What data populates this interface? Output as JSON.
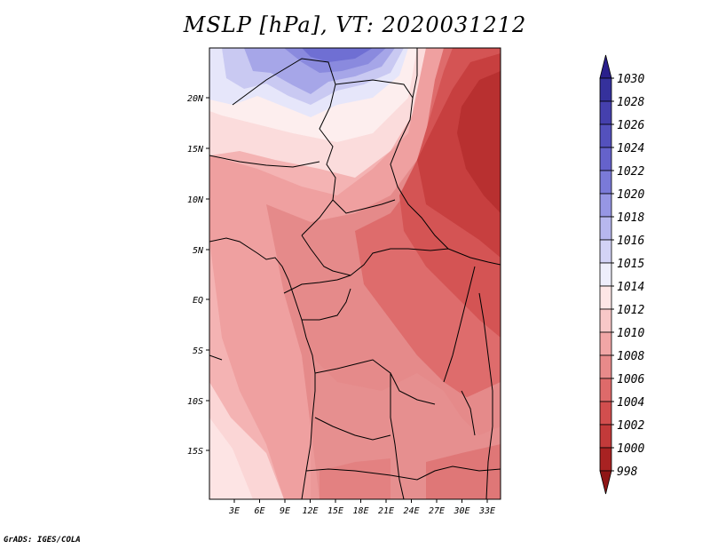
{
  "title": "MSLP [hPa], VT: 2020031212",
  "credit": "GrADS: IGES/COLA",
  "map": {
    "lat_labels": [
      "20N",
      "15N",
      "10N",
      "5N",
      "EQ",
      "5S",
      "10S",
      "15S"
    ],
    "lon_labels": [
      "3E",
      "6E",
      "9E",
      "12E",
      "15E",
      "18E",
      "21E",
      "24E",
      "27E",
      "30E",
      "33E"
    ]
  },
  "colorbar": {
    "levels": [
      "1030",
      "1028",
      "1026",
      "1024",
      "1022",
      "1020",
      "1018",
      "1016",
      "1015",
      "1014",
      "1012",
      "1010",
      "1008",
      "1006",
      "1004",
      "1002",
      "1000",
      "998"
    ],
    "colors": [
      "#2a1f8c",
      "#35319c",
      "#4540ad",
      "#5451bd",
      "#6562cb",
      "#7a7ad8",
      "#9696e4",
      "#b7b7ee",
      "#d3d3f6",
      "#eeeefb",
      "#fde6e6",
      "#f8c8c8",
      "#f1a6a6",
      "#e88a8a",
      "#de6a6a",
      "#d24e4e",
      "#c33a3a",
      "#a82222",
      "#8f1616"
    ]
  }
}
